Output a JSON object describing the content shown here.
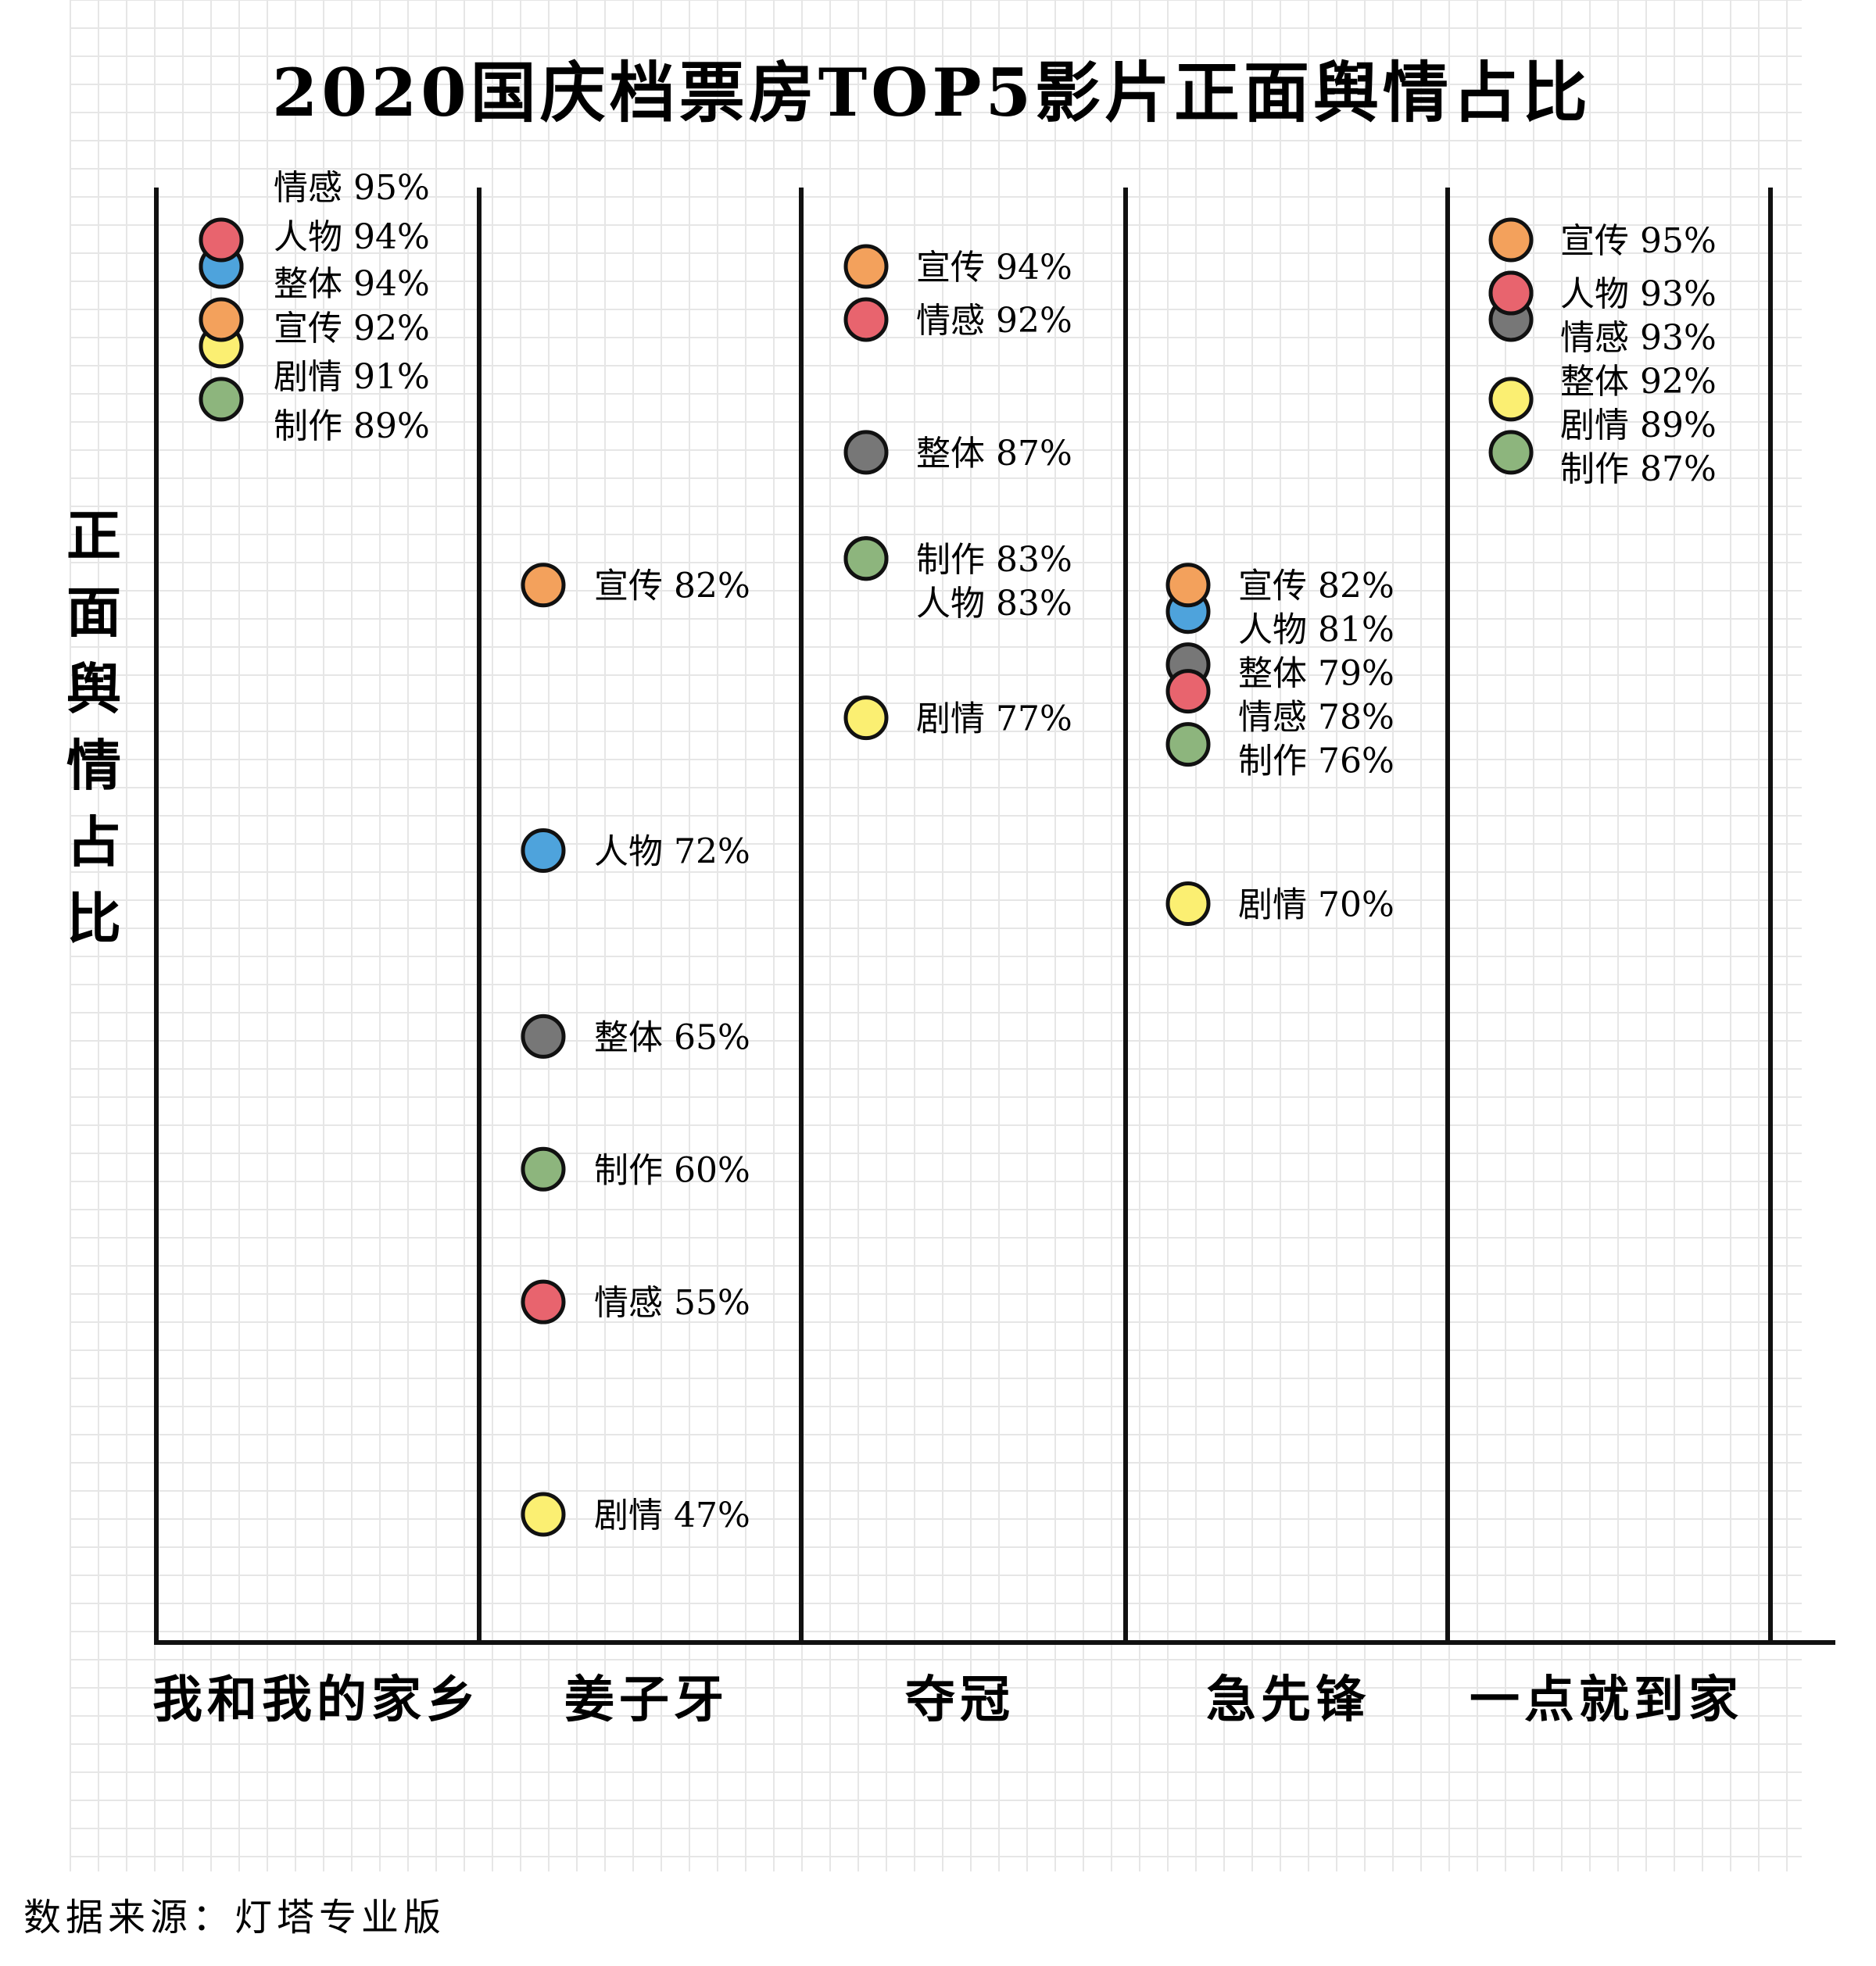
{
  "chart_data": {
    "type": "scatter",
    "title": "2020国庆档票房TOP5影片正面舆情占比",
    "ylabel": "正面舆情占比",
    "xlabel": "",
    "ylim": [
      0,
      100
    ],
    "grid": true,
    "categories": [
      "我和我的家乡",
      "姜子牙",
      "夺冠",
      "急先锋",
      "一点就到家"
    ],
    "series": [
      {
        "name": "整体",
        "color": "#777777",
        "values": [
          94,
          65,
          87,
          79,
          92
        ]
      },
      {
        "name": "人物",
        "color": "#4ea3dc",
        "values": [
          94,
          72,
          83,
          81,
          93
        ]
      },
      {
        "name": "情感",
        "color": "#e8646e",
        "values": [
          95,
          55,
          92,
          78,
          93
        ]
      },
      {
        "name": "宣传",
        "color": "#f3a15c",
        "values": [
          92,
          82,
          94,
          82,
          95
        ]
      },
      {
        "name": "剧情",
        "color": "#fbef72",
        "values": [
          91,
          47,
          77,
          70,
          89
        ]
      },
      {
        "name": "制作",
        "color": "#8db57d",
        "values": [
          89,
          60,
          83,
          76,
          87
        ]
      }
    ],
    "labels": [
      [
        "情感 95%",
        "人物 94%",
        "整体 94%",
        "宣传 92%",
        "剧情 91%",
        "制作 89%"
      ],
      [
        "宣传 82%",
        "人物 72%",
        "整体 65%",
        "制作 60%",
        "情感 55%",
        "剧情 47%"
      ],
      [
        "宣传 94%",
        "情感 92%",
        "整体 87%",
        "制作 83%",
        "人物 83%",
        "剧情 77%"
      ],
      [
        "宣传 82%",
        "人物 81%",
        "整体 79%",
        "情感 78%",
        "制作 76%",
        "剧情 70%"
      ],
      [
        "宣传 95%",
        "人物 93%",
        "情感 93%",
        "整体 92%",
        "剧情 89%",
        "制作 87%"
      ]
    ]
  },
  "source": "数据来源：灯塔专业版"
}
